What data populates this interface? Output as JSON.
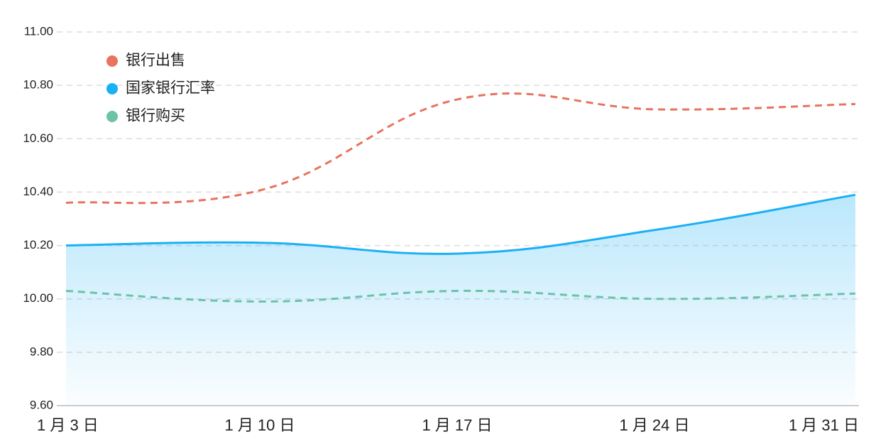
{
  "chart_data": {
    "type": "line",
    "categories": [
      "1 月 3 日",
      "1 月 10 日",
      "1 月 17 日",
      "1 月 24 日",
      "1 月 31 日"
    ],
    "series": [
      {
        "name": "银行出售",
        "color": "#e8735e",
        "dashed": true,
        "values": [
          10.36,
          10.41,
          10.75,
          10.71,
          10.73
        ]
      },
      {
        "name": "国家银行汇率",
        "color": "#1ab0f5",
        "dashed": false,
        "area": true,
        "values": [
          10.2,
          10.21,
          10.17,
          10.26,
          10.39
        ]
      },
      {
        "name": "银行购买",
        "color": "#6cc3a8",
        "dashed": true,
        "values": [
          10.03,
          9.99,
          10.03,
          10.0,
          10.02
        ]
      }
    ],
    "ylim": [
      9.6,
      11.0
    ],
    "yticks": [
      {
        "value": 9.6,
        "label": "9.60"
      },
      {
        "value": 9.8,
        "label": "9.80"
      },
      {
        "value": 10.0,
        "label": "10.00"
      },
      {
        "value": 10.2,
        "label": "10.20"
      },
      {
        "value": 10.4,
        "label": "10.40"
      },
      {
        "value": 10.6,
        "label": "10.60"
      },
      {
        "value": 10.8,
        "label": "10.80"
      },
      {
        "value": 11.0,
        "label": "11.00"
      }
    ],
    "grid": true
  }
}
